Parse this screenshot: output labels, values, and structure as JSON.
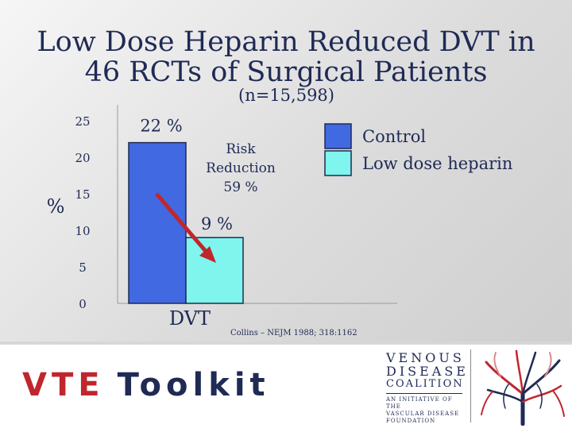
{
  "slide": {
    "title_line1": "Low Dose Heparin Reduced DVT in",
    "title_line2": "46 RCTs of Surgical Patients",
    "subtitle": "(n=15,598)",
    "citation": "Collins – NEJM 1988; 318:1162"
  },
  "chart_data": {
    "type": "bar",
    "categories": [
      "DVT"
    ],
    "ylabel": "%",
    "ylim": [
      0,
      25
    ],
    "yticks": [
      0,
      5,
      10,
      15,
      20,
      25
    ],
    "grid": false,
    "legend_position": "top-right",
    "series": [
      {
        "name": "Control",
        "values": [
          22
        ],
        "color": "#4169e1",
        "data_label": "22 %"
      },
      {
        "name": "Low dose heparin",
        "values": [
          9
        ],
        "color": "#7ff5ee",
        "data_label": "9 %"
      }
    ],
    "annotation": {
      "line1": "Risk",
      "line2": "Reduction",
      "line3": "59 %",
      "arrow_color": "#c0262d"
    }
  },
  "footer": {
    "toolkit_red": "VTE",
    "toolkit_blue": "Toolkit"
  },
  "logo": {
    "line1": "VENOUS",
    "line2": "DISEASE",
    "line3": "COALITION",
    "tagline1": "AN INITIATIVE of the",
    "tagline2": "VASCULAR DISEASE",
    "tagline3": "FOUNDATION",
    "tree_colors": [
      "#c0262d",
      "#1f2a55",
      "#d98a8e"
    ]
  }
}
